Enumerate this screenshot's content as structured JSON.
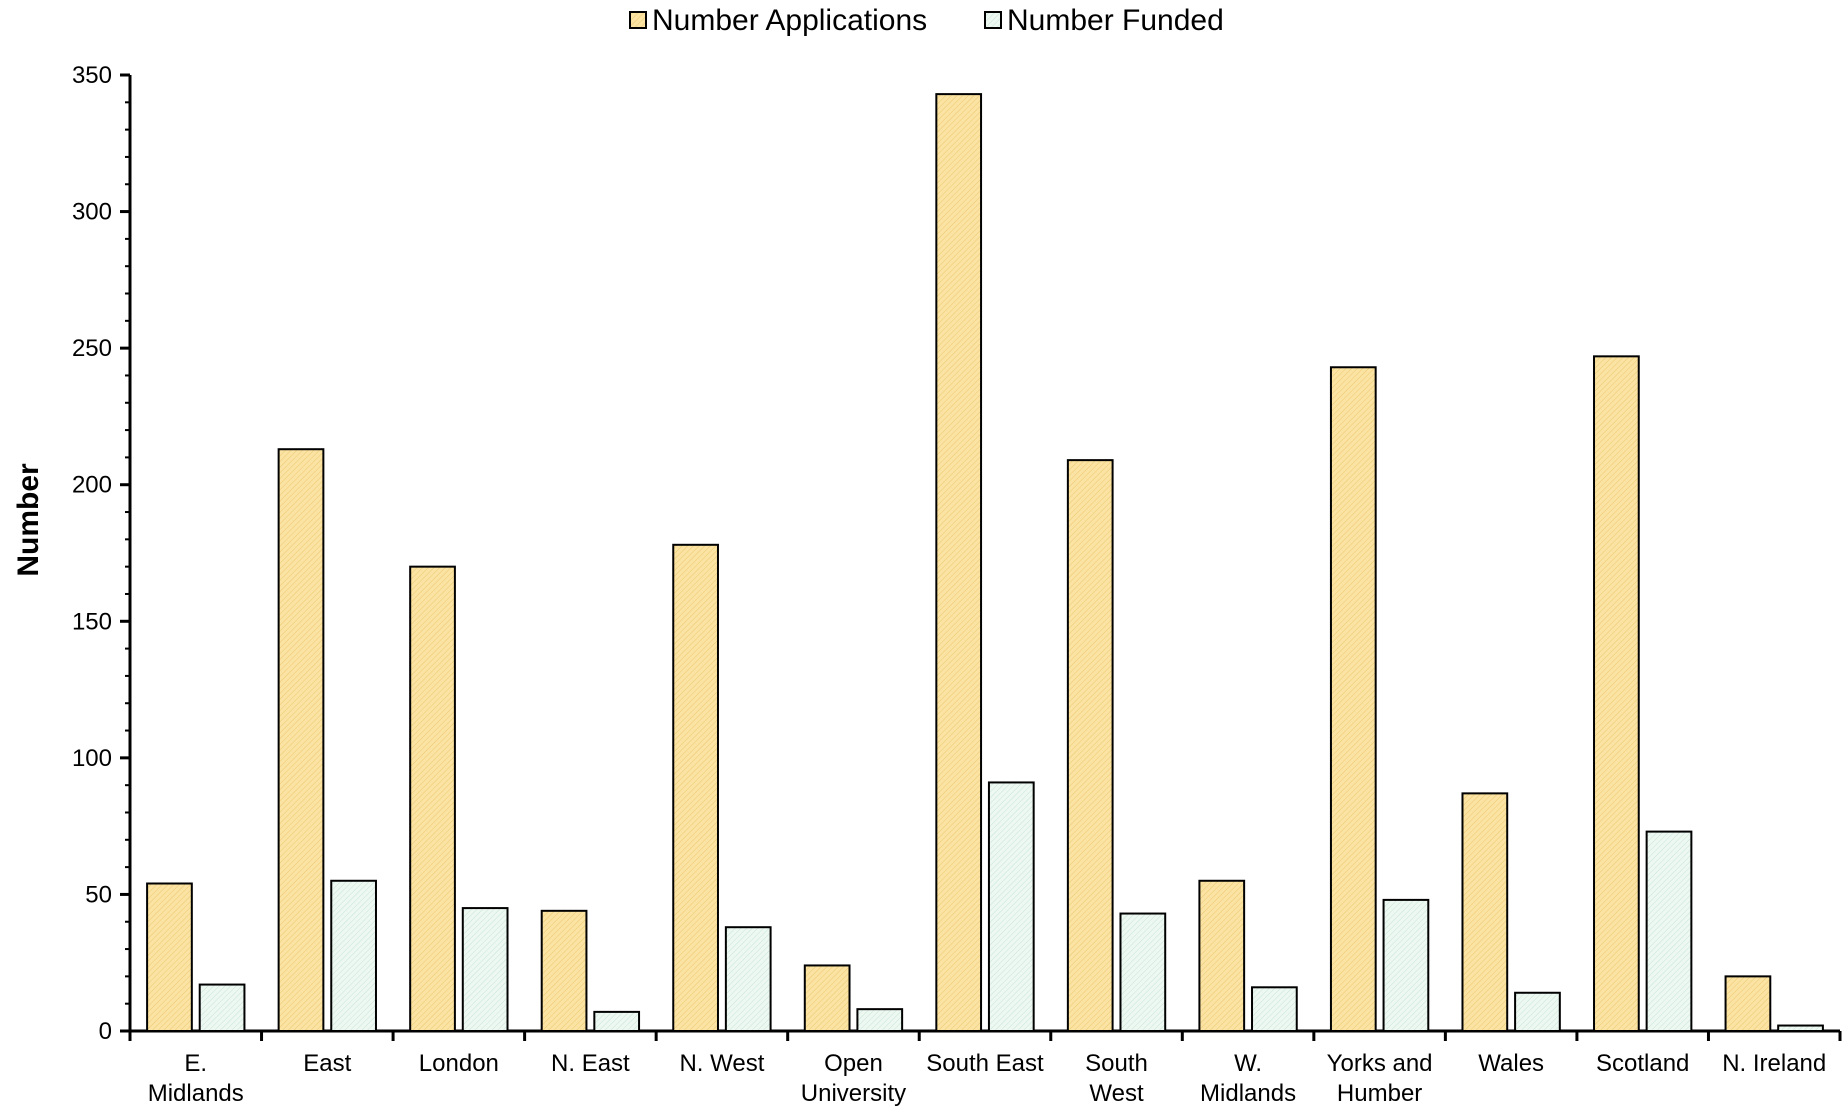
{
  "chart_data": {
    "type": "bar",
    "title": "",
    "xlabel": "",
    "ylabel": "Number",
    "ylim": [
      0,
      350
    ],
    "yticks": [
      0,
      50,
      100,
      150,
      200,
      250,
      300,
      350
    ],
    "grid": false,
    "legend_position": "top",
    "categories": [
      [
        "E.",
        "Midlands"
      ],
      [
        "East"
      ],
      [
        "London"
      ],
      [
        "N. East"
      ],
      [
        "N. West"
      ],
      [
        "Open",
        "University"
      ],
      [
        "South East"
      ],
      [
        "South",
        "West"
      ],
      [
        "W.",
        "Midlands"
      ],
      [
        "Yorks and",
        "Humber"
      ],
      [
        "Wales"
      ],
      [
        "Scotland"
      ],
      [
        "N. Ireland"
      ]
    ],
    "series": [
      {
        "name": "Number Applications",
        "color": "#fbe3a3",
        "hatch": "#ecc872",
        "values": [
          54,
          213,
          170,
          44,
          178,
          24,
          343,
          209,
          55,
          243,
          87,
          247,
          20
        ]
      },
      {
        "name": "Number Funded",
        "color": "#eef8f3",
        "hatch": "#c6e4d2",
        "values": [
          17,
          55,
          45,
          7,
          38,
          8,
          91,
          43,
          16,
          48,
          14,
          73,
          2
        ]
      }
    ]
  }
}
